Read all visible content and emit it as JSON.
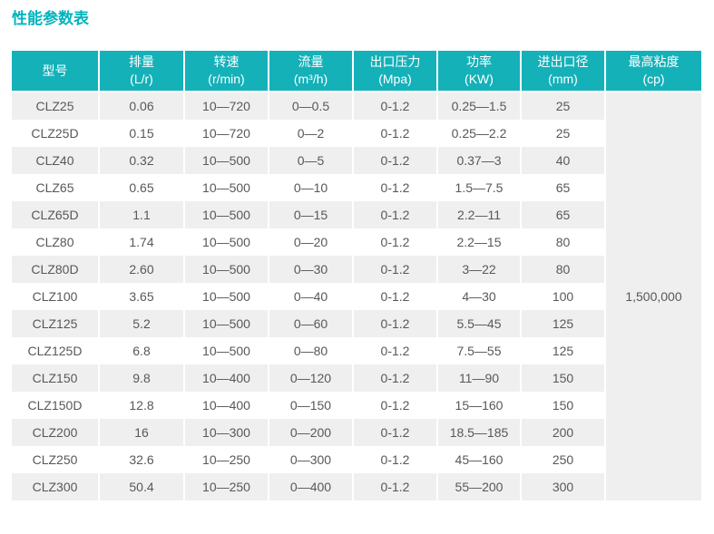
{
  "page_title": "性能参数表",
  "colors": {
    "title_teal": "#00b4bd",
    "header_teal": "#14b1b9",
    "row_alt_gray": "#efefef",
    "text_gray": "#58585a"
  },
  "table": {
    "columns": [
      {
        "key": "model",
        "label": "型号",
        "unit": ""
      },
      {
        "key": "displacement",
        "label": "排量",
        "unit": "(L/r)"
      },
      {
        "key": "speed",
        "label": "转速",
        "unit": "(r/min)"
      },
      {
        "key": "flow",
        "label": "流量",
        "unit": "(m³/h)"
      },
      {
        "key": "pressure",
        "label": "出口压力",
        "unit": "(Mpa)"
      },
      {
        "key": "power",
        "label": "功率",
        "unit": "(KW)"
      },
      {
        "key": "diameter",
        "label": "进出口径",
        "unit": "(mm)"
      },
      {
        "key": "viscosity",
        "label": "最高粘度",
        "unit": "(cp)"
      }
    ],
    "rows": [
      {
        "model": "CLZ25",
        "displacement": "0.06",
        "speed": "10—720",
        "flow": "0—0.5",
        "pressure": "0-1.2",
        "power": "0.25—1.5",
        "diameter": "25"
      },
      {
        "model": "CLZ25D",
        "displacement": "0.15",
        "speed": "10—720",
        "flow": "0—2",
        "pressure": "0-1.2",
        "power": "0.25—2.2",
        "diameter": "25"
      },
      {
        "model": "CLZ40",
        "displacement": "0.32",
        "speed": "10—500",
        "flow": "0—5",
        "pressure": "0-1.2",
        "power": "0.37—3",
        "diameter": "40"
      },
      {
        "model": "CLZ65",
        "displacement": "0.65",
        "speed": "10—500",
        "flow": "0—10",
        "pressure": "0-1.2",
        "power": "1.5—7.5",
        "diameter": "65"
      },
      {
        "model": "CLZ65D",
        "displacement": "1.1",
        "speed": "10—500",
        "flow": "0—15",
        "pressure": "0-1.2",
        "power": "2.2—11",
        "diameter": "65"
      },
      {
        "model": "CLZ80",
        "displacement": "1.74",
        "speed": "10—500",
        "flow": "0—20",
        "pressure": "0-1.2",
        "power": "2.2—15",
        "diameter": "80"
      },
      {
        "model": "CLZ80D",
        "displacement": "2.60",
        "speed": "10—500",
        "flow": "0—30",
        "pressure": "0-1.2",
        "power": "3—22",
        "diameter": "80"
      },
      {
        "model": "CLZ100",
        "displacement": "3.65",
        "speed": "10—500",
        "flow": "0—40",
        "pressure": "0-1.2",
        "power": "4—30",
        "diameter": "100"
      },
      {
        "model": "CLZ125",
        "displacement": "5.2",
        "speed": "10—500",
        "flow": "0—60",
        "pressure": "0-1.2",
        "power": "5.5—45",
        "diameter": "125"
      },
      {
        "model": "CLZ125D",
        "displacement": "6.8",
        "speed": "10—500",
        "flow": "0—80",
        "pressure": "0-1.2",
        "power": "7.5—55",
        "diameter": "125"
      },
      {
        "model": "CLZ150",
        "displacement": "9.8",
        "speed": "10—400",
        "flow": "0—120",
        "pressure": "0-1.2",
        "power": "11—90",
        "diameter": "150"
      },
      {
        "model": "CLZ150D",
        "displacement": "12.8",
        "speed": "10—400",
        "flow": "0—150",
        "pressure": "0-1.2",
        "power": "15—160",
        "diameter": "150"
      },
      {
        "model": "CLZ200",
        "displacement": "16",
        "speed": "10—300",
        "flow": "0—200",
        "pressure": "0-1.2",
        "power": "18.5—185",
        "diameter": "200"
      },
      {
        "model": "CLZ250",
        "displacement": "32.6",
        "speed": "10—250",
        "flow": "0—300",
        "pressure": "0-1.2",
        "power": "45—160",
        "diameter": "250"
      },
      {
        "model": "CLZ300",
        "displacement": "50.4",
        "speed": "10—250",
        "flow": "0—400",
        "pressure": "0-1.2",
        "power": "55—200",
        "diameter": "300"
      }
    ],
    "max_viscosity": "1,500,000"
  }
}
